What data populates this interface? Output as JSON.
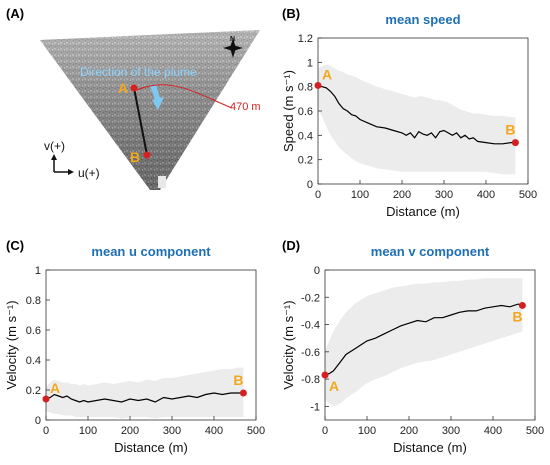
{
  "panel_a": {
    "letter": "(A)",
    "plume_text": "Direction of the plume",
    "distance_text": "470 m",
    "point_a": "A",
    "point_b": "B",
    "axis_v": "v(+)",
    "axis_u": "u(+)",
    "compass_letter": "N",
    "colors": {
      "plume_text": "#8fd3ff",
      "arrow": "#7cc8f0",
      "line": "#d42020",
      "point": "#d42020",
      "label": "#f2a81d"
    }
  },
  "chart_data": [
    {
      "id": "speed",
      "letter": "(B)",
      "type": "line",
      "title": "mean speed",
      "xlabel": "Distance (m)",
      "ylabel": "Speed (m s⁻¹)",
      "xlim": [
        0,
        500
      ],
      "ylim": [
        0,
        1.2
      ],
      "xticks": [
        0,
        100,
        200,
        300,
        400,
        500
      ],
      "yticks": [
        0,
        0.2,
        0.4,
        0.6,
        0.8,
        1,
        1.2
      ],
      "ytick_labels": [
        "0",
        "0.2",
        "0.4",
        "0.6",
        "0.8",
        "1",
        "1.2"
      ],
      "x": [
        0,
        10,
        20,
        30,
        40,
        50,
        60,
        70,
        80,
        90,
        100,
        120,
        140,
        160,
        180,
        200,
        210,
        220,
        230,
        240,
        250,
        260,
        270,
        280,
        290,
        300,
        310,
        320,
        330,
        340,
        350,
        360,
        370,
        380,
        400,
        420,
        440,
        460,
        470
      ],
      "y": [
        0.81,
        0.8,
        0.79,
        0.76,
        0.72,
        0.66,
        0.62,
        0.6,
        0.57,
        0.56,
        0.53,
        0.5,
        0.47,
        0.46,
        0.44,
        0.42,
        0.4,
        0.42,
        0.38,
        0.43,
        0.41,
        0.4,
        0.42,
        0.38,
        0.43,
        0.44,
        0.42,
        0.4,
        0.42,
        0.38,
        0.4,
        0.37,
        0.38,
        0.35,
        0.34,
        0.33,
        0.33,
        0.34,
        0.34
      ],
      "band_upper": [
        0.95,
        0.97,
        0.98,
        0.97,
        0.95,
        0.93,
        0.92,
        0.9,
        0.89,
        0.88,
        0.86,
        0.83,
        0.8,
        0.78,
        0.76,
        0.74,
        0.73,
        0.72,
        0.71,
        0.72,
        0.72,
        0.71,
        0.7,
        0.69,
        0.69,
        0.68,
        0.67,
        0.65,
        0.63,
        0.61,
        0.6,
        0.59,
        0.58,
        0.58,
        0.57,
        0.56,
        0.56,
        0.55,
        0.55
      ],
      "band_lower": [
        0.62,
        0.55,
        0.47,
        0.4,
        0.35,
        0.3,
        0.27,
        0.24,
        0.21,
        0.19,
        0.17,
        0.15,
        0.13,
        0.12,
        0.11,
        0.1,
        0.1,
        0.1,
        0.1,
        0.1,
        0.1,
        0.1,
        0.1,
        0.1,
        0.1,
        0.1,
        0.1,
        0.1,
        0.1,
        0.1,
        0.1,
        0.1,
        0.1,
        0.1,
        0.1,
        0.09,
        0.08,
        0.08,
        0.08
      ],
      "start_label": "A",
      "end_label": "B",
      "colors": {
        "line": "#000000",
        "band": "#ececec",
        "marker": "#d42020",
        "label": "#f2a81d",
        "title": "#1f6fb5"
      }
    },
    {
      "id": "u",
      "letter": "(C)",
      "type": "line",
      "title": "mean u component",
      "xlabel": "Distance (m)",
      "ylabel": "Velocity (m s⁻¹)",
      "xlim": [
        0,
        500
      ],
      "ylim": [
        0,
        1
      ],
      "xticks": [
        0,
        100,
        200,
        300,
        400,
        500
      ],
      "yticks": [
        0,
        0.2,
        0.4,
        0.6,
        0.8,
        1
      ],
      "ytick_labels": [
        "0",
        "0.2",
        "0.4",
        "0.6",
        "0.8",
        "1"
      ],
      "x": [
        0,
        10,
        20,
        30,
        40,
        50,
        60,
        70,
        80,
        90,
        100,
        120,
        140,
        160,
        180,
        200,
        220,
        240,
        260,
        280,
        300,
        320,
        340,
        360,
        380,
        400,
        420,
        440,
        460,
        470
      ],
      "y": [
        0.14,
        0.15,
        0.17,
        0.16,
        0.15,
        0.16,
        0.14,
        0.13,
        0.12,
        0.13,
        0.12,
        0.13,
        0.14,
        0.13,
        0.12,
        0.14,
        0.13,
        0.14,
        0.12,
        0.15,
        0.14,
        0.15,
        0.16,
        0.15,
        0.17,
        0.18,
        0.17,
        0.18,
        0.18,
        0.18
      ],
      "band_upper": [
        0.22,
        0.25,
        0.27,
        0.26,
        0.25,
        0.25,
        0.24,
        0.24,
        0.23,
        0.24,
        0.23,
        0.24,
        0.25,
        0.24,
        0.25,
        0.26,
        0.25,
        0.27,
        0.26,
        0.28,
        0.28,
        0.29,
        0.3,
        0.31,
        0.32,
        0.33,
        0.34,
        0.34,
        0.35,
        0.35
      ],
      "band_lower": [
        0.06,
        0.05,
        0.04,
        0.04,
        0.03,
        0.03,
        0.03,
        0.02,
        0.02,
        0.02,
        0.02,
        0.02,
        0.02,
        0.02,
        0.01,
        0.02,
        0.02,
        0.02,
        0.01,
        0.02,
        0.02,
        0.02,
        0.02,
        0.02,
        0.02,
        0.02,
        0.02,
        0.02,
        0.02,
        0.02
      ],
      "start_label": "A",
      "end_label": "B",
      "colors": {
        "line": "#000000",
        "band": "#ececec",
        "marker": "#d42020",
        "label": "#f2a81d",
        "title": "#1f6fb5"
      }
    },
    {
      "id": "v",
      "letter": "(D)",
      "type": "line",
      "title": "mean v component",
      "xlabel": "Distance (m)",
      "ylabel": "Velocity (m s⁻¹)",
      "xlim": [
        0,
        500
      ],
      "ylim": [
        -1.1,
        0
      ],
      "xticks": [
        0,
        100,
        200,
        300,
        400,
        500
      ],
      "yticks": [
        -1,
        -0.8,
        -0.6,
        -0.4,
        -0.2,
        0
      ],
      "ytick_labels": [
        "-1",
        "-0.8",
        "-0.6",
        "-0.4",
        "-0.2",
        "0"
      ],
      "x": [
        0,
        10,
        20,
        30,
        40,
        50,
        60,
        70,
        80,
        90,
        100,
        120,
        140,
        160,
        180,
        200,
        220,
        240,
        260,
        280,
        300,
        320,
        340,
        360,
        380,
        400,
        420,
        440,
        460,
        470
      ],
      "y": [
        -0.77,
        -0.76,
        -0.74,
        -0.7,
        -0.66,
        -0.62,
        -0.6,
        -0.58,
        -0.56,
        -0.54,
        -0.52,
        -0.5,
        -0.47,
        -0.44,
        -0.41,
        -0.39,
        -0.37,
        -0.38,
        -0.35,
        -0.35,
        -0.33,
        -0.31,
        -0.3,
        -0.3,
        -0.28,
        -0.27,
        -0.26,
        -0.27,
        -0.25,
        -0.26
      ],
      "band_upper": [
        -0.6,
        -0.52,
        -0.45,
        -0.4,
        -0.35,
        -0.31,
        -0.28,
        -0.25,
        -0.23,
        -0.21,
        -0.19,
        -0.17,
        -0.15,
        -0.13,
        -0.12,
        -0.11,
        -0.1,
        -0.1,
        -0.09,
        -0.09,
        -0.08,
        -0.08,
        -0.07,
        -0.07,
        -0.06,
        -0.06,
        -0.06,
        -0.06,
        -0.06,
        -0.06
      ],
      "band_lower": [
        -0.95,
        -0.98,
        -1.0,
        -0.99,
        -0.97,
        -0.94,
        -0.92,
        -0.9,
        -0.88,
        -0.85,
        -0.83,
        -0.8,
        -0.78,
        -0.75,
        -0.72,
        -0.7,
        -0.68,
        -0.67,
        -0.66,
        -0.64,
        -0.62,
        -0.6,
        -0.58,
        -0.56,
        -0.54,
        -0.52,
        -0.5,
        -0.48,
        -0.46,
        -0.45
      ],
      "start_label": "A",
      "end_label": "B",
      "colors": {
        "line": "#000000",
        "band": "#ececec",
        "marker": "#d42020",
        "label": "#f2a81d",
        "title": "#1f6fb5"
      }
    }
  ]
}
